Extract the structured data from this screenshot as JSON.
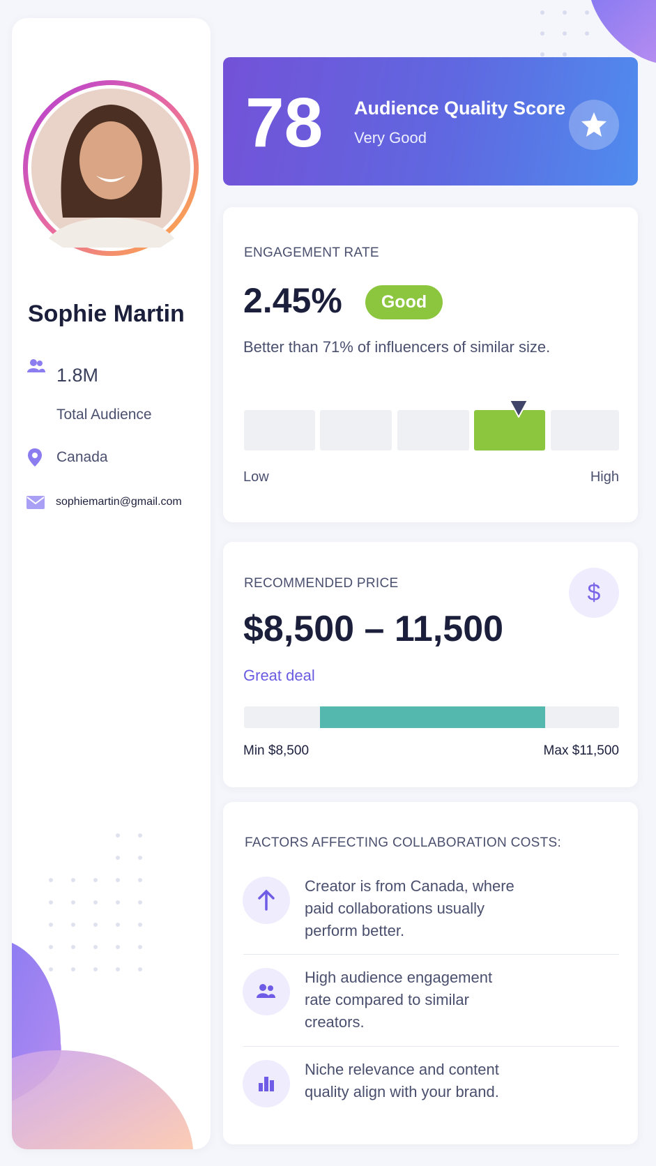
{
  "profile": {
    "name": "Sophie Martin",
    "audience": "1.8M",
    "audience_label": "Total Audience",
    "location": "Canada",
    "email": "sophiemartin@gmail.com"
  },
  "score": {
    "value": "78",
    "title": "Audience Quality Score",
    "rating": "Very Good"
  },
  "engagement": {
    "label": "ENGAGEMENT RATE",
    "value": "2.45%",
    "badge": "Good",
    "description": "Better than 71% of influencers of similar size.",
    "low": "Low",
    "high": "High"
  },
  "price": {
    "label": "RECOMMENDED PRICE",
    "icon": "$",
    "range": "$8,500 – 11,500",
    "note": "Great deal",
    "min": "Min $8,500",
    "max": "Max $11,500"
  },
  "factors": {
    "title": "FACTORS AFFECTING COLLABORATION COSTS:",
    "items": [
      {
        "lines": [
          "Creator is from Canada, where",
          "paid collaborations usually",
          "perform better."
        ]
      },
      {
        "lines": [
          "High audience engagement",
          "rate compared to similar",
          "creators."
        ]
      },
      {
        "lines": [
          "Niche relevance and content",
          "quality align with your brand."
        ]
      }
    ]
  }
}
